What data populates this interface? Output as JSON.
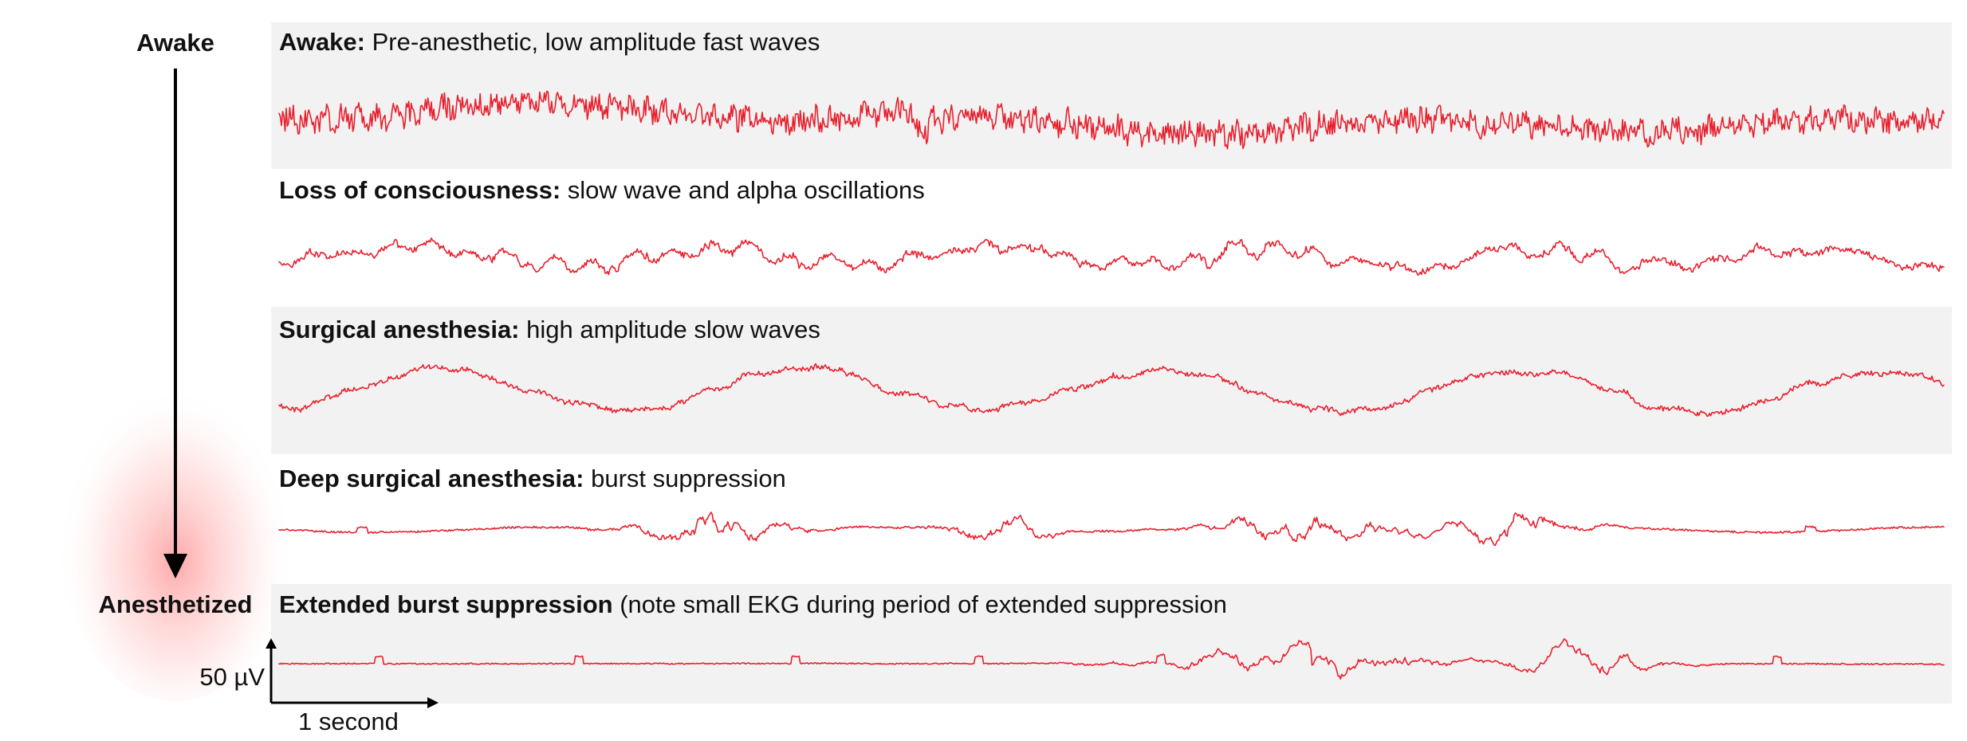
{
  "labels": {
    "top": "Awake",
    "bottom": "Anesthetized"
  },
  "colors": {
    "trace": "#e8202e",
    "panel_bg": "#f2f2f2",
    "glow": "#ff9a9a",
    "text": "#111111"
  },
  "panels": [
    {
      "bold": "Awake:",
      "rest": " Pre-anesthetic, low amplitude fast waves",
      "shaded": true,
      "pattern": "awake"
    },
    {
      "bold": "Loss of consciousness:",
      "rest": " slow wave and alpha oscillations",
      "shaded": false,
      "pattern": "loc"
    },
    {
      "bold": "Surgical anesthesia:",
      "rest": " high amplitude slow waves",
      "shaded": true,
      "pattern": "surgical"
    },
    {
      "bold": "Deep surgical anesthesia:",
      "rest": " burst suppression",
      "shaded": false,
      "pattern": "deep"
    },
    {
      "bold": "Extended burst suppression",
      "rest": " (note small EKG during period of extended suppression",
      "shaded": true,
      "pattern": "extended"
    }
  ],
  "scale_bar": {
    "amplitude_label": "50 µV",
    "time_label": "1 second"
  }
}
